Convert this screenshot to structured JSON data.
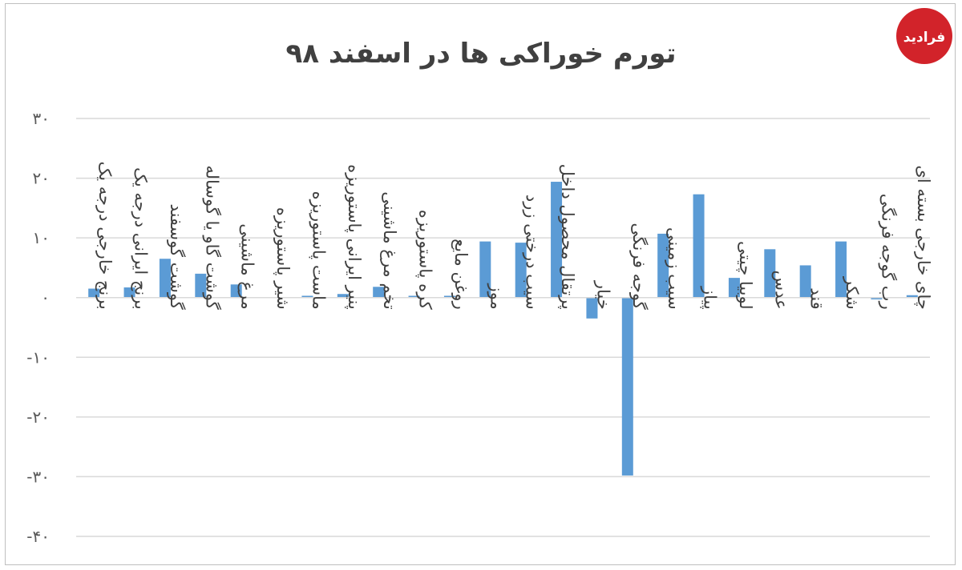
{
  "chart_data": {
    "type": "bar",
    "title": "تورم خوراکی ها در اسفند ۹۸",
    "categories": [
      "برنج خارجی درجه یک",
      "برنج ایرانی درجه یک",
      "گوشت گوسفند",
      "گوشت گاو یا گوساله",
      "مرغ ماشینی",
      "شیر پاستوریزه",
      "ماست پاستوریزه",
      "پنیر ایرانی پاستوریزه",
      "تخم مرغ ماشینی",
      "کره پاستوریزه",
      "روغن مایع",
      "موز",
      "سیب درختی زرد",
      "پرتقال محصول داخل",
      "خیار",
      "گوجه فرنگی",
      "سیب زمینی",
      "پیاز",
      "لوبیا چیتی",
      "عدس",
      "قند",
      "شکر",
      "رب گوجه فرنگی",
      "چای خارجی بسته ای"
    ],
    "values": [
      1.5,
      1.7,
      6.5,
      4.0,
      2.2,
      0.0,
      0.3,
      0.6,
      1.8,
      0.3,
      0.3,
      9.4,
      9.2,
      19.4,
      -3.5,
      -29.8,
      10.7,
      17.3,
      3.3,
      8.1,
      5.4,
      9.4,
      -0.3,
      0.4
    ],
    "y_ticks": [
      "۳۰",
      "۲۰",
      "۱۰",
      "۰",
      "-۱۰",
      "-۲۰",
      "-۳۰",
      "-۴۰"
    ],
    "y_tick_values": [
      30,
      20,
      10,
      0,
      -10,
      -20,
      -30,
      -40
    ],
    "ylim": [
      -40,
      30
    ],
    "grid": true,
    "legend": "none",
    "colors": {
      "bar": "#5b9bd5",
      "grid": "#d9d9d9",
      "axis": "#d9d9d9",
      "text": "#404040"
    }
  },
  "logo": {
    "text": "فرادید"
  }
}
